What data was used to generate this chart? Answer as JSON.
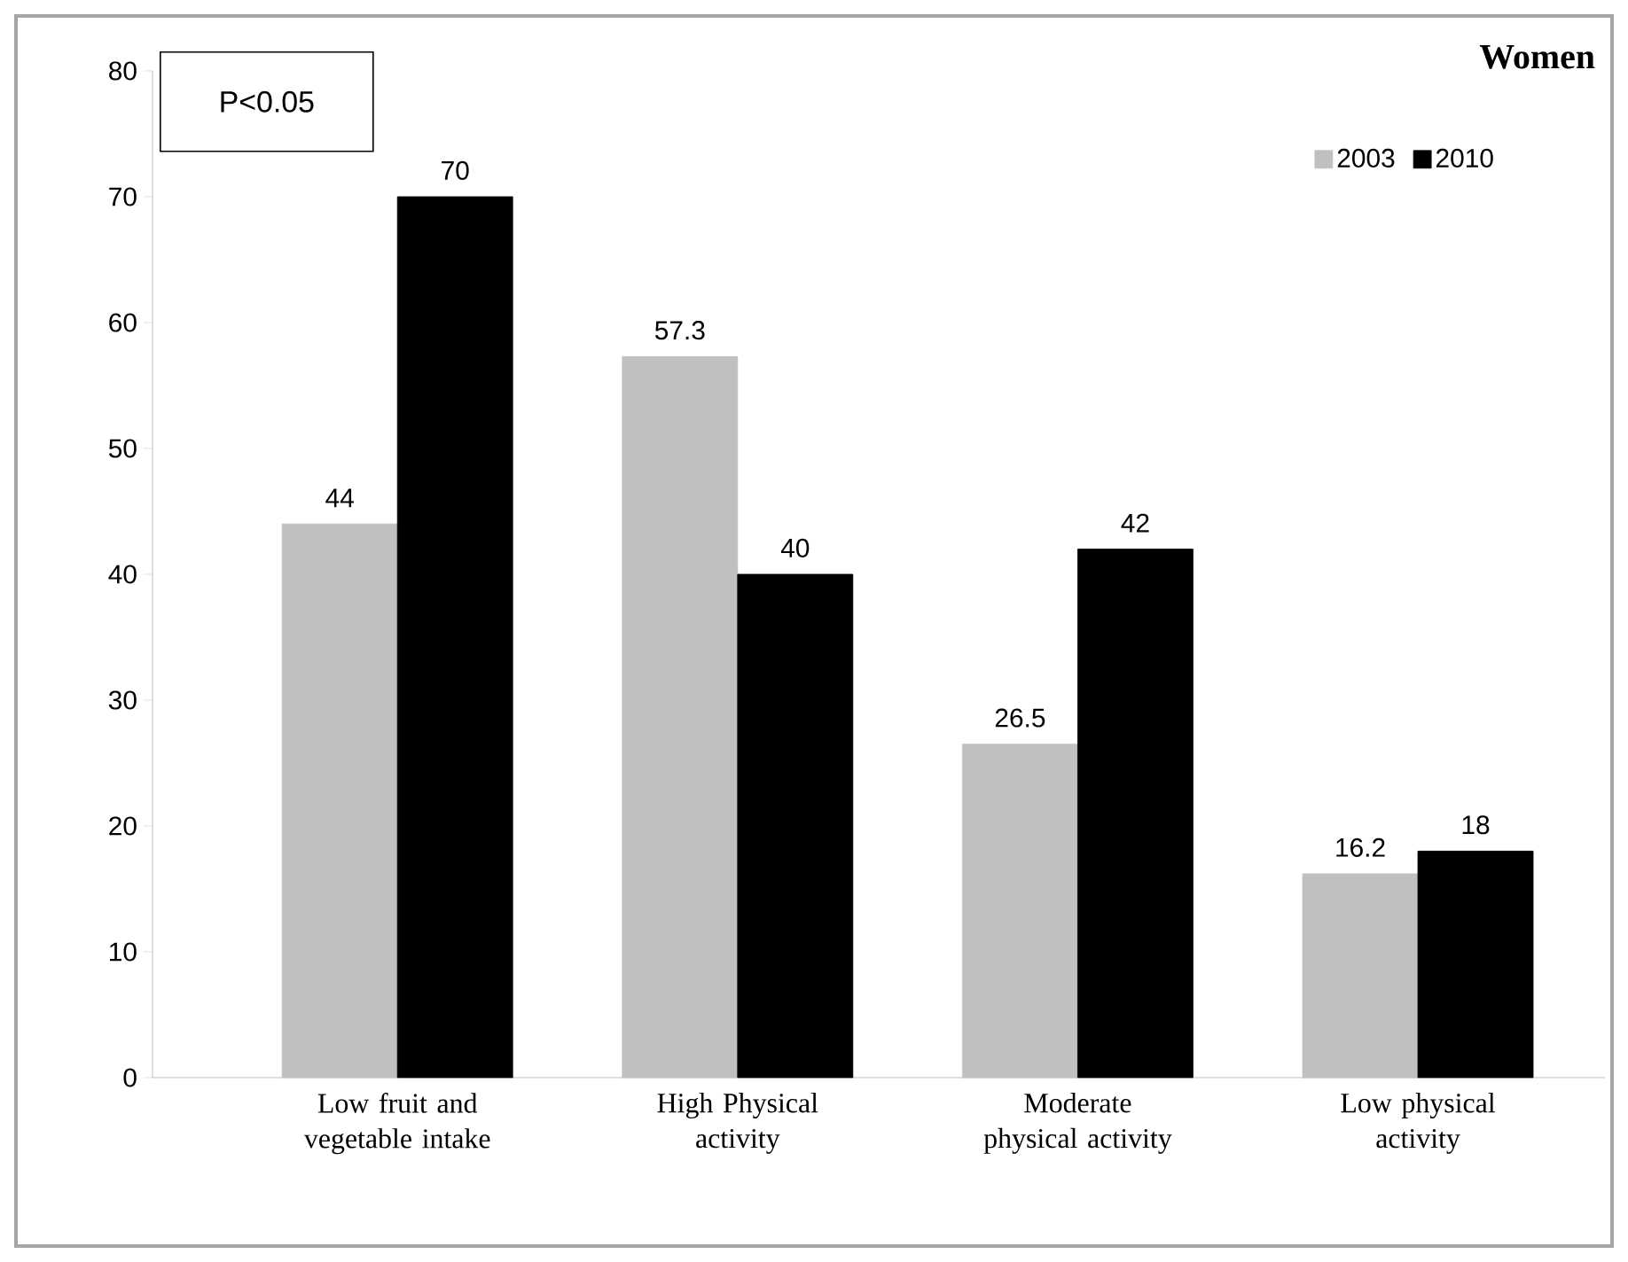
{
  "chart_data": {
    "type": "bar",
    "categories": [
      "Low fruit and vegetable intake",
      "High Physical activity",
      "Moderate physical activity",
      "Low physical activity"
    ],
    "series": [
      {
        "name": "2003",
        "color": "#c0c0c0",
        "values": [
          44,
          57.3,
          26.5,
          16.2
        ]
      },
      {
        "name": "2010",
        "color": "#000000",
        "values": [
          70,
          40,
          42,
          18
        ]
      }
    ],
    "ylim": [
      0,
      80
    ],
    "yticks": [
      0,
      10,
      20,
      30,
      40,
      50,
      60,
      70,
      80
    ],
    "data_labels": true,
    "legend": "top right",
    "grid": false,
    "annotations": [
      "Women",
      "P<0.05"
    ]
  }
}
